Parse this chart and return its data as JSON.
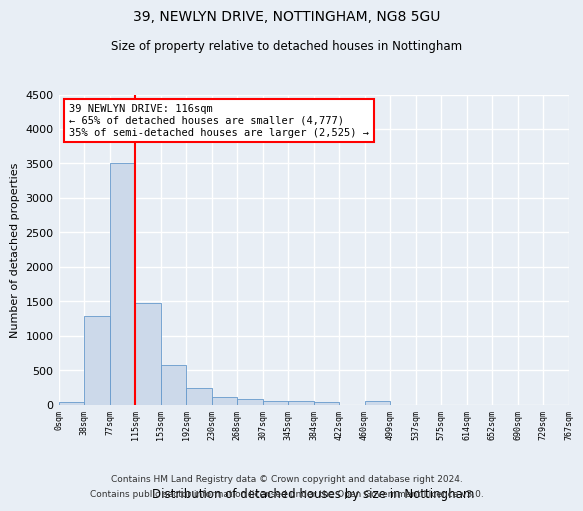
{
  "title1": "39, NEWLYN DRIVE, NOTTINGHAM, NG8 5GU",
  "title2": "Size of property relative to detached houses in Nottingham",
  "xlabel": "Distribution of detached houses by size in Nottingham",
  "ylabel": "Number of detached properties",
  "bar_color": "#ccd9ea",
  "bar_edge_color": "#6699cc",
  "vline_color": "red",
  "vline_x": 3,
  "annotation_line1": "39 NEWLYN DRIVE: 116sqm",
  "annotation_line2": "← 65% of detached houses are smaller (4,777)",
  "annotation_line3": "35% of semi-detached houses are larger (2,525) →",
  "annotation_box_color": "white",
  "annotation_box_edge": "red",
  "bin_labels": [
    "0sqm",
    "38sqm",
    "77sqm",
    "115sqm",
    "153sqm",
    "192sqm",
    "230sqm",
    "268sqm",
    "307sqm",
    "345sqm",
    "384sqm",
    "422sqm",
    "460sqm",
    "499sqm",
    "537sqm",
    "575sqm",
    "614sqm",
    "652sqm",
    "690sqm",
    "729sqm",
    "767sqm"
  ],
  "bar_values": [
    40,
    1280,
    3500,
    1480,
    570,
    240,
    115,
    85,
    55,
    45,
    35,
    0,
    50,
    0,
    0,
    0,
    0,
    0,
    0,
    0,
    0
  ],
  "ylim": [
    0,
    4500
  ],
  "yticks": [
    0,
    500,
    1000,
    1500,
    2000,
    2500,
    3000,
    3500,
    4000,
    4500
  ],
  "footer1": "Contains HM Land Registry data © Crown copyright and database right 2024.",
  "footer2": "Contains public sector information licensed under the Open Government Licence v3.0.",
  "bg_color": "#e8eef5",
  "grid_color": "#ffffff"
}
